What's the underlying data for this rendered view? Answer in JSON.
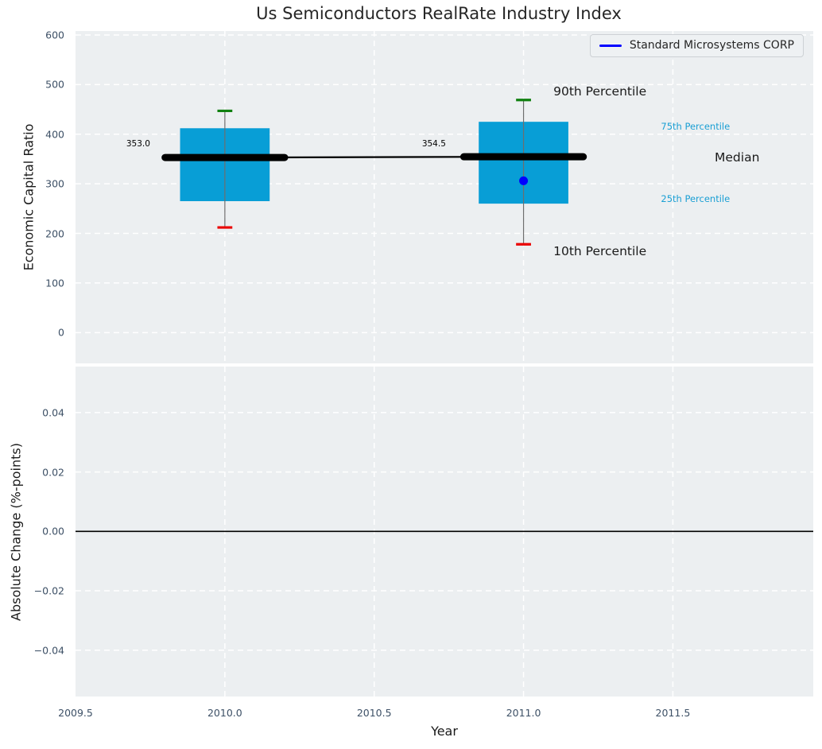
{
  "figure": {
    "title": "Us Semiconductors RealRate Industry Index",
    "background_color": "#ffffff",
    "plot_background_color": "#eceff1",
    "grid_color": "#ffffff",
    "tick_label_color": "#3d5066",
    "text_color": "#1a1a1a"
  },
  "legend": {
    "label": "Standard Microsystems CORP",
    "line_color": "#0000ff"
  },
  "x_axis": {
    "label": "Year",
    "tick_labels": [
      "2009.5",
      "2010.0",
      "2010.5",
      "2011.0",
      "2011.5"
    ],
    "tick_values": [
      2009.5,
      2010.0,
      2010.5,
      2011.0,
      2011.5
    ]
  },
  "top_plot": {
    "ylabel": "Economic Capital Ratio",
    "tick_labels": [
      "0",
      "100",
      "200",
      "300",
      "400",
      "500",
      "600"
    ],
    "tick_values": [
      0,
      100,
      200,
      300,
      400,
      500,
      600
    ]
  },
  "bottom_plot": {
    "ylabel": "Absolute Change (%-points)",
    "tick_labels": [
      "−0.04",
      "−0.02",
      "0.00",
      "0.02",
      "0.04"
    ],
    "tick_values": [
      -0.04,
      -0.02,
      0.0,
      0.02,
      0.04
    ]
  },
  "chart_data": [
    {
      "type": "boxplot",
      "title": "Us Semiconductors RealRate Industry Index",
      "xlabel": "Year",
      "ylabel": "Economic Capital Ratio",
      "xlim": [
        2009.5,
        2011.97
      ],
      "ylim": [
        -62,
        608
      ],
      "x_ticks": [
        2009.5,
        2010.0,
        2010.5,
        2011.0,
        2011.5
      ],
      "y_ticks": [
        0,
        100,
        200,
        300,
        400,
        500,
        600
      ],
      "grid": true,
      "legend_position": "upper right",
      "style": {
        "box_color": "#089ed6",
        "whisker_color": "#6e6e6e",
        "p90_cap_color": "#108010",
        "p10_cap_color": "#ea0000",
        "median_color": "#000000",
        "box_half_width": 0.15,
        "median_half_width": 0.2,
        "cap_half_width": 0.025
      },
      "boxes": [
        {
          "x": 2010.0,
          "p10": 212,
          "p25": 265,
          "median": 353.0,
          "p75": 412,
          "p90": 447,
          "median_label": "353.0"
        },
        {
          "x": 2011.0,
          "p10": 178,
          "p25": 260,
          "median": 354.5,
          "p75": 425,
          "p90": 469,
          "median_label": "354.5"
        }
      ],
      "median_trend": [
        {
          "x": 2010.0,
          "y": 353.0
        },
        {
          "x": 2011.0,
          "y": 354.5
        }
      ],
      "series": [
        {
          "name": "Standard Microsystems CORP",
          "color": "#0000ff",
          "marker": "circle",
          "points": [
            {
              "x": 2011.0,
              "y": 306
            }
          ]
        }
      ],
      "value_labels": [
        {
          "text": "353.0",
          "x": 2009.67,
          "y": 380
        },
        {
          "text": "354.5",
          "x": 2010.66,
          "y": 380
        }
      ],
      "percentile_labels": [
        {
          "text": "90th Percentile",
          "x": 2011.1,
          "y": 486,
          "color": "#1a1a1a",
          "size": 15.5
        },
        {
          "text": "75th Percentile",
          "x": 2011.46,
          "y": 415,
          "color": "#1a9fd4",
          "size": 11.5
        },
        {
          "text": "Median",
          "x": 2011.64,
          "y": 353,
          "color": "#1a1a1a",
          "size": 15.5
        },
        {
          "text": "25th Percentile",
          "x": 2011.46,
          "y": 269,
          "color": "#1a9fd4",
          "size": 11.5
        },
        {
          "text": "10th Percentile",
          "x": 2011.1,
          "y": 164,
          "color": "#1a1a1a",
          "size": 15.5
        }
      ]
    },
    {
      "type": "line",
      "xlabel": "Year",
      "ylabel": "Absolute Change (%-points)",
      "xlim": [
        2009.5,
        2011.97
      ],
      "ylim": [
        -0.0556,
        0.0555
      ],
      "x_ticks": [
        2009.5,
        2010.0,
        2010.5,
        2011.0,
        2011.5
      ],
      "y_ticks": [
        -0.04,
        -0.02,
        0.0,
        0.02,
        0.04
      ],
      "grid": true,
      "zero_line": {
        "y": 0.0,
        "color": "#000000"
      },
      "series": []
    }
  ]
}
